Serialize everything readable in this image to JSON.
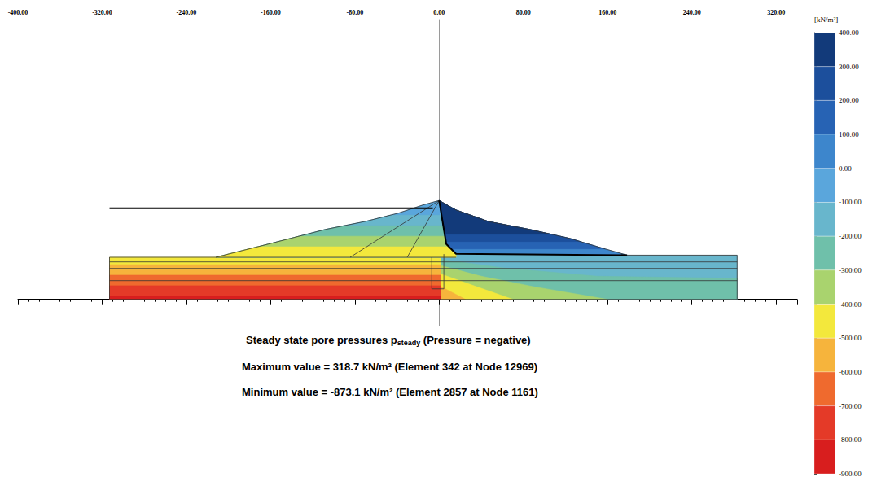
{
  "chart_data": {
    "type": "contour",
    "title": {
      "text": "Steady state pore pressures p",
      "subscript": "steady",
      "note": "(Pressure = negative)"
    },
    "annotations": [
      "Maximum value = 318.7 kN/m² (Element 342 at Node 12969)",
      "Minimum value = -873.1 kN/m² (Element 2857 at Node 1161)"
    ],
    "xlim": [
      -400,
      340
    ],
    "xticks": [
      {
        "value": -400,
        "label": "-400.00"
      },
      {
        "value": -320,
        "label": "-320.00"
      },
      {
        "value": -240,
        "label": "-240.00"
      },
      {
        "value": -160,
        "label": "-160.00"
      },
      {
        "value": -80,
        "label": "-80.00"
      },
      {
        "value": 0,
        "label": "0.00"
      },
      {
        "value": 80,
        "label": "80.00"
      },
      {
        "value": 160,
        "label": "160.00"
      },
      {
        "value": 240,
        "label": "240.00"
      },
      {
        "value": 320,
        "label": "320.00"
      }
    ],
    "ylim": [
      -25,
      266
    ],
    "tick_labels": "x",
    "colorbar": {
      "label": "[kN/m²]",
      "lim": [
        -900,
        400
      ],
      "ticks": [
        {
          "value": 400,
          "label": "400.00"
        },
        {
          "value": 300,
          "label": "300.00"
        },
        {
          "value": 200,
          "label": "200.00"
        },
        {
          "value": 100,
          "label": "100.00"
        },
        {
          "value": 0,
          "label": "0.00"
        },
        {
          "value": -100,
          "label": "-100.00"
        },
        {
          "value": -200,
          "label": "-200.00"
        },
        {
          "value": -300,
          "label": "-300.00"
        },
        {
          "value": -400,
          "label": "-400.00"
        },
        {
          "value": -500,
          "label": "-500.00"
        },
        {
          "value": -600,
          "label": "-600.00"
        },
        {
          "value": -700,
          "label": "-700.00"
        },
        {
          "value": -800,
          "label": "-800.00"
        },
        {
          "value": -900,
          "label": "-900.00"
        }
      ],
      "colors": [
        "#123a7a",
        "#1c4f9c",
        "#2763b4",
        "#3d86cc",
        "#5aa6dc",
        "#68b6cc",
        "#6fc0aa",
        "#a9d36e",
        "#f3e83c",
        "#f6b43c",
        "#ef6a2e",
        "#e43a28",
        "#d81e1e"
      ]
    },
    "regions": [
      {
        "value": -450,
        "points": [
          [
            -313,
            0
          ],
          [
            2,
            0
          ],
          [
            2,
            40
          ],
          [
            -313,
            40
          ]
        ]
      },
      {
        "value": -550,
        "points": [
          [
            -313,
            0
          ],
          [
            2,
            0
          ],
          [
            2,
            33
          ],
          [
            -313,
            33
          ]
        ]
      },
      {
        "value": -650,
        "points": [
          [
            -313,
            0
          ],
          [
            2,
            0
          ],
          [
            2,
            23
          ],
          [
            -313,
            23
          ]
        ]
      },
      {
        "value": -750,
        "points": [
          [
            -313,
            0
          ],
          [
            2,
            0
          ],
          [
            2,
            13
          ],
          [
            -313,
            13
          ]
        ]
      },
      {
        "value": -850,
        "points": [
          [
            -313,
            0
          ],
          [
            2,
            0
          ],
          [
            2,
            3
          ],
          [
            -313,
            3
          ]
        ]
      },
      {
        "value": -150,
        "points": [
          [
            2,
            0
          ],
          [
            283,
            0
          ],
          [
            283,
            42
          ],
          [
            178.5,
            42
          ],
          [
            16,
            43.3
          ],
          [
            2,
            43.3
          ]
        ]
      },
      {
        "value": -250,
        "points": [
          [
            2,
            0
          ],
          [
            283,
            0
          ],
          [
            283,
            20
          ],
          [
            150,
            22
          ],
          [
            60,
            30
          ],
          [
            2,
            38
          ]
        ]
      },
      {
        "value": -350,
        "points": [
          [
            2,
            0
          ],
          [
            160,
            0
          ],
          [
            90,
            12
          ],
          [
            40,
            22
          ],
          [
            2,
            32
          ]
        ]
      },
      {
        "value": -450,
        "points": [
          [
            2,
            0
          ],
          [
            70,
            0
          ],
          [
            30,
            14
          ],
          [
            2,
            24
          ]
        ]
      },
      {
        "value": -550,
        "points": [
          [
            2,
            0
          ],
          [
            25,
            0
          ],
          [
            2,
            12
          ]
        ]
      },
      {
        "value": -50,
        "points": [
          [
            -212,
            40
          ],
          [
            -162,
            52.6
          ],
          [
            -108,
            66.5
          ],
          [
            -69.6,
            74.2
          ],
          [
            -38.7,
            82
          ],
          [
            -15.5,
            89.7
          ],
          [
            0,
            94
          ],
          [
            6.8,
            52.6
          ],
          [
            16,
            43.3
          ],
          [
            16,
            40
          ]
        ]
      },
      {
        "value": -150,
        "points": [
          [
            -212,
            40
          ],
          [
            -162,
            52.6
          ],
          [
            -108,
            66.5
          ],
          [
            -69.6,
            74.2
          ],
          [
            -46.6,
            80
          ],
          [
            2.3,
            80
          ],
          [
            6.8,
            52.6
          ],
          [
            16,
            43.3
          ],
          [
            16,
            40
          ]
        ]
      },
      {
        "value": -250,
        "points": [
          [
            -212,
            40
          ],
          [
            -162,
            52.6
          ],
          [
            -108,
            66.5
          ],
          [
            -90.5,
            70
          ],
          [
            3.9,
            70
          ],
          [
            6.8,
            52.6
          ],
          [
            16,
            43.3
          ],
          [
            16,
            40
          ]
        ]
      },
      {
        "value": -350,
        "points": [
          [
            -212,
            40
          ],
          [
            -162,
            52.6
          ],
          [
            -133.3,
            60
          ],
          [
            5.6,
            60
          ],
          [
            6.8,
            52.6
          ],
          [
            16,
            43.3
          ],
          [
            16,
            40
          ]
        ]
      },
      {
        "value": -450,
        "points": [
          [
            -212,
            40
          ],
          [
            -172.3,
            50
          ],
          [
            9.4,
            50
          ],
          [
            16,
            43.3
          ],
          [
            16,
            40
          ]
        ]
      },
      {
        "value": 50,
        "points": [
          [
            0,
            94
          ],
          [
            16,
            85
          ],
          [
            47,
            74
          ],
          [
            86,
            66.5
          ],
          [
            124,
            58
          ],
          [
            155,
            48.7
          ],
          [
            178.5,
            42
          ],
          [
            16,
            43.3
          ],
          [
            6.8,
            52.6
          ]
        ]
      },
      {
        "value": 150,
        "points": [
          [
            11.4,
            48
          ],
          [
            6.8,
            52.6
          ],
          [
            0,
            94
          ],
          [
            16,
            85
          ],
          [
            47,
            74
          ],
          [
            86,
            66.5
          ],
          [
            124,
            58
          ],
          [
            155,
            48.7
          ],
          [
            157.5,
            48
          ]
        ]
      },
      {
        "value": 250,
        "points": [
          [
            6.4,
            55
          ],
          [
            0,
            94
          ],
          [
            16,
            85
          ],
          [
            47,
            74
          ],
          [
            86,
            66.5
          ],
          [
            124,
            58
          ],
          [
            134,
            55
          ]
        ]
      },
      {
        "value": 350,
        "points": [
          [
            5.2,
            62
          ],
          [
            0,
            94
          ],
          [
            16,
            85
          ],
          [
            47,
            74
          ],
          [
            86,
            66.5
          ],
          [
            106.1,
            62
          ]
        ]
      }
    ],
    "lines": [
      {
        "line_style": "thin",
        "color": "#333333",
        "points": [
          [
            -313,
            35.6
          ],
          [
            283,
            35.6
          ]
        ]
      },
      {
        "line_style": "thin",
        "color": "#333333",
        "points": [
          [
            -313,
            29.4
          ],
          [
            283,
            29.4
          ]
        ]
      },
      {
        "line_style": "thin",
        "color": "#333333",
        "points": [
          [
            -313,
            17.8
          ],
          [
            283,
            17.8
          ]
        ]
      },
      {
        "line_style": "thin",
        "color": "#333333",
        "points": [
          [
            -7,
            40
          ],
          [
            -7,
            10
          ],
          [
            4.5,
            10
          ],
          [
            4.5,
            43
          ]
        ]
      },
      {
        "line_style": "thin",
        "color": "#333333",
        "points": [
          [
            -212,
            40
          ],
          [
            16,
            40
          ]
        ]
      },
      {
        "line_style": "thin",
        "color": "#333333",
        "points": [
          [
            0,
            94
          ],
          [
            -84.5,
            40
          ]
        ]
      },
      {
        "line_style": "thin",
        "color": "#333333",
        "points": [
          [
            0,
            94
          ],
          [
            -30.3,
            40
          ]
        ]
      },
      {
        "line_style": "thin",
        "color": "#333333",
        "points": [
          [
            -212,
            40
          ],
          [
            -313,
            40
          ],
          [
            -313,
            0
          ],
          [
            283,
            0
          ],
          [
            283,
            42
          ],
          [
            178.5,
            42
          ]
        ]
      },
      {
        "line_style": "thin",
        "color": "#333333",
        "points": [
          [
            -212,
            40
          ],
          [
            -162,
            52.6
          ],
          [
            -108,
            66.5
          ],
          [
            -69.6,
            74.2
          ],
          [
            -38.7,
            82
          ],
          [
            -15.5,
            89.7
          ],
          [
            0,
            94
          ],
          [
            16,
            85
          ],
          [
            47,
            74
          ],
          [
            86,
            66.5
          ],
          [
            124,
            58
          ],
          [
            155,
            48.7
          ],
          [
            178.5,
            42
          ]
        ]
      },
      {
        "line_style": "thick",
        "color": "#000000",
        "points": [
          [
            0,
            94
          ],
          [
            6.8,
            52.6
          ],
          [
            16,
            43.3
          ],
          [
            178.5,
            42
          ]
        ]
      },
      {
        "line_style": "thick",
        "color": "#000000",
        "points": [
          [
            -313,
            86.6
          ],
          [
            -6,
            86.6
          ]
        ]
      }
    ]
  }
}
